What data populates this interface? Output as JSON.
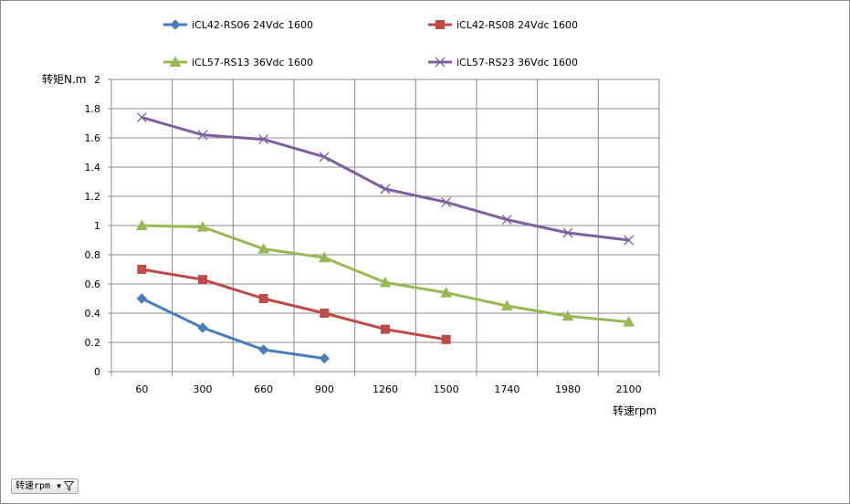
{
  "chart_data": {
    "type": "line",
    "categories": [
      "60",
      "300",
      "660",
      "900",
      "1260",
      "1500",
      "1740",
      "1980",
      "2100"
    ],
    "ylabel": "转矩N.m",
    "xlabel": "转速rpm",
    "ylim": [
      0,
      2
    ],
    "yticks": [
      "0",
      "0.2",
      "0.4",
      "0.6",
      "0.8",
      "1",
      "1.2",
      "1.4",
      "1.6",
      "1.8",
      "2"
    ],
    "grid": true,
    "legend_position": "top",
    "series": [
      {
        "name": "iCL42-RS06 24Vdc 1600",
        "color": "#4a7ebb",
        "marker": "diamond",
        "values": [
          0.5,
          0.3,
          0.15,
          0.09,
          null,
          null,
          null,
          null,
          null
        ]
      },
      {
        "name": "iCL42-RS08 24Vdc 1600",
        "color": "#be4b48",
        "marker": "square",
        "values": [
          0.7,
          0.63,
          0.5,
          0.4,
          0.29,
          0.22,
          null,
          null,
          null
        ]
      },
      {
        "name": "iCL57-RS13 36Vdc 1600",
        "color": "#98b954",
        "marker": "triangle",
        "values": [
          1.0,
          0.99,
          0.84,
          0.78,
          0.61,
          0.54,
          0.45,
          0.38,
          0.34
        ]
      },
      {
        "name": "iCL57-RS23 36Vdc 1600",
        "color": "#7d60a0",
        "marker": "x",
        "values": [
          1.74,
          1.62,
          1.59,
          1.47,
          1.25,
          1.16,
          1.04,
          0.95,
          0.9
        ]
      }
    ]
  },
  "filter_button": {
    "label": "转速rpm",
    "dropdown_icon": "chevron-down-icon",
    "filter_icon": "funnel-icon"
  }
}
